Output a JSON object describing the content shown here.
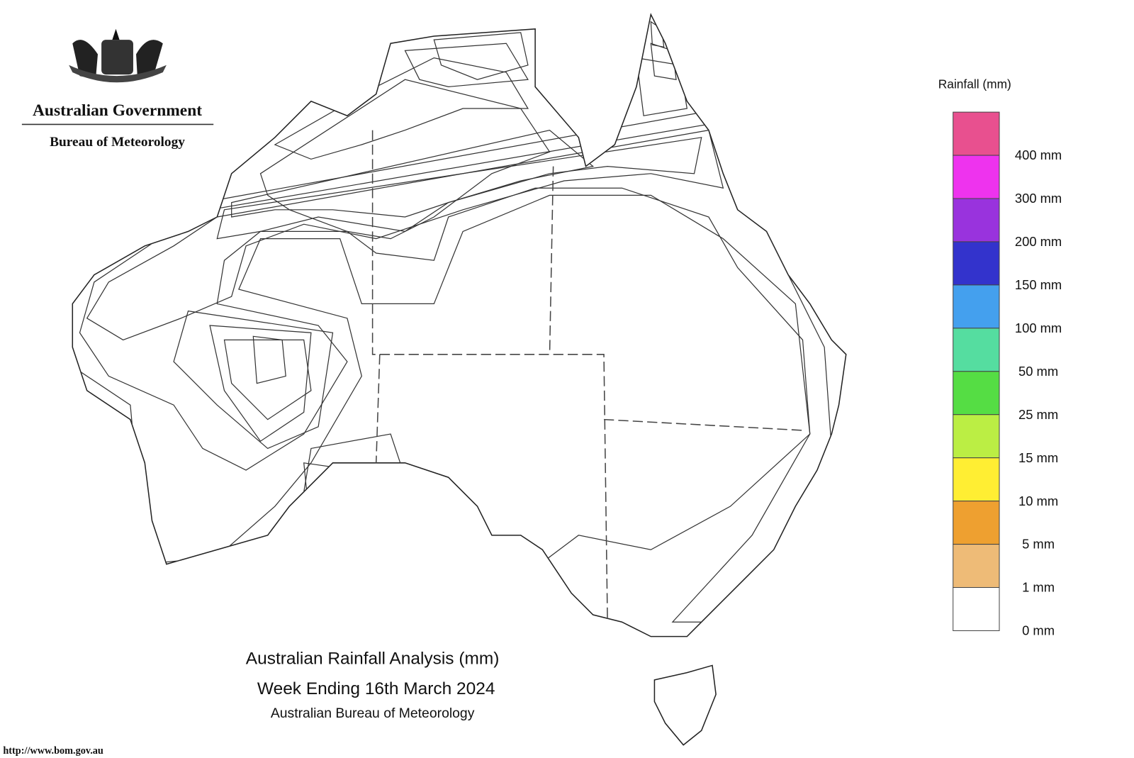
{
  "header": {
    "government": "Australian Government",
    "agency": "Bureau of Meteorology"
  },
  "legend": {
    "title": "Rainfall (mm)",
    "boxes": [
      "#e8508f",
      "#ee33ee",
      "#9933dd",
      "#3333cc",
      "#44a0ee",
      "#55dda0",
      "#55dd44",
      "#bbee44",
      "#ffee33",
      "#eea030",
      "#eebb77",
      "#ffffff"
    ],
    "labels": [
      "400 mm",
      "300 mm",
      "200 mm",
      "150 mm",
      "100 mm",
      "50 mm",
      "25 mm",
      "15 mm",
      "10 mm",
      "5 mm",
      "1 mm",
      "0 mm"
    ]
  },
  "footer": {
    "title": "Australian Rainfall Analysis (mm)",
    "period": "Week Ending 16th March 2024",
    "source": "Australian Bureau of Meteorology",
    "url": "http://www.bom.gov.au"
  }
}
